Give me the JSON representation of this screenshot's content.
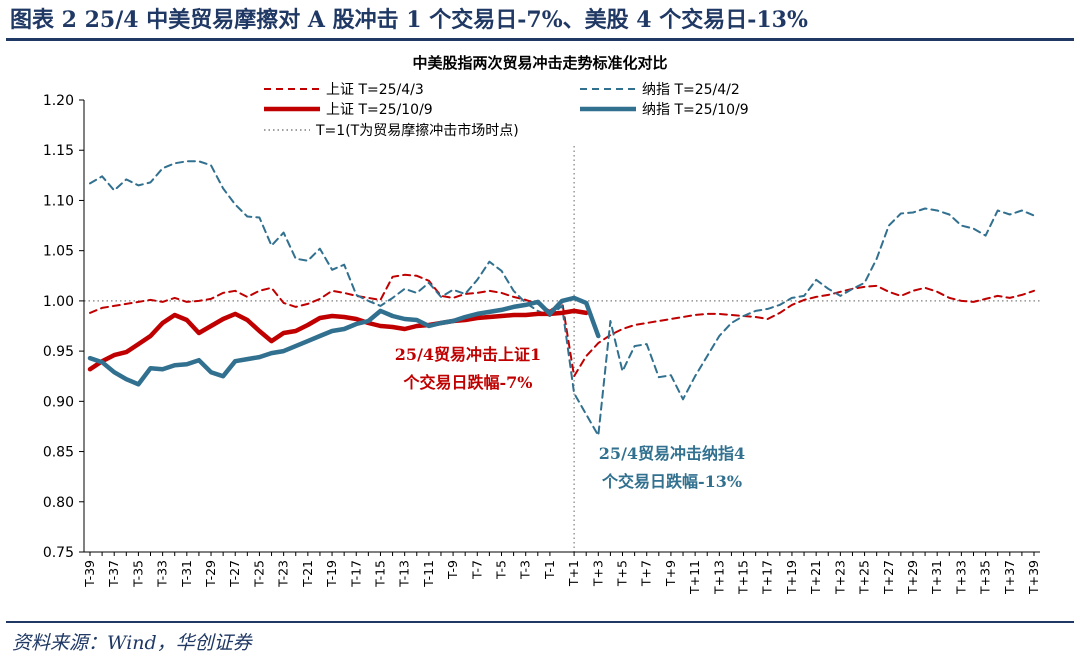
{
  "figure": {
    "title": "图表 2   25/4 中美贸易摩擦对 A 股冲击 1 个交易日-7%、美股 4 个交易日-13%",
    "source": "资料来源：Wind，华创证券"
  },
  "colors": {
    "red": "#c00000",
    "blue": "#31708f",
    "dark_blue": "#1f3864",
    "ref_line": "#7f7f7f"
  },
  "chart_data": {
    "type": "line",
    "title": "中美股指两次贸易冲击走势标准化对比",
    "xlabel": "",
    "ylabel": "",
    "ylim": [
      0.75,
      1.2
    ],
    "yticks": [
      0.75,
      0.8,
      0.85,
      0.9,
      0.95,
      1.0,
      1.05,
      1.1,
      1.15,
      1.2
    ],
    "ytick_labels": [
      "0.75",
      "0.80",
      "0.85",
      "0.90",
      "0.95",
      "1.00",
      "1.05",
      "1.10",
      "1.15",
      "1.20"
    ],
    "x_start": -39,
    "x_end": 39,
    "xtick_labels": [
      "T-39",
      "T-37",
      "T-35",
      "T-33",
      "T-31",
      "T-29",
      "T-27",
      "T-25",
      "T-23",
      "T-21",
      "T-19",
      "T-17",
      "T-15",
      "T-13",
      "T-11",
      "T-9",
      "T-7",
      "T-5",
      "T-3",
      "T-1",
      "T+1",
      "T+3",
      "T+5",
      "T+7",
      "T+9",
      "T+11",
      "T+13",
      "T+15",
      "T+17",
      "T+19",
      "T+21",
      "T+23",
      "T+25",
      "T+27",
      "T+29",
      "T+31",
      "T+33",
      "T+35",
      "T+37",
      "T+39"
    ],
    "legend_position": "top",
    "series": [
      {
        "name": "上证 T=25/4/3",
        "style": "dashed",
        "color": "#c00000",
        "width": 2,
        "x_from": -39,
        "values": [
          0.988,
          0.993,
          0.995,
          0.997,
          0.999,
          1.001,
          0.999,
          1.003,
          0.999,
          1.0,
          1.002,
          1.008,
          1.01,
          1.004,
          1.01,
          1.013,
          0.998,
          0.994,
          0.997,
          1.002,
          1.01,
          1.008,
          1.005,
          1.003,
          1.001,
          1.024,
          1.026,
          1.025,
          1.02,
          1.005,
          1.003,
          1.007,
          1.008,
          1.01,
          1.008,
          1.004,
          1.001,
          0.997,
          0.99,
          1.0,
          0.925,
          0.945,
          0.958,
          0.966,
          0.972,
          0.976,
          0.978,
          0.98,
          0.982,
          0.984,
          0.986,
          0.987,
          0.987,
          0.986,
          0.985,
          0.984,
          0.982,
          0.988,
          0.996,
          1.001,
          1.004,
          1.006,
          1.009,
          1.012,
          1.014,
          1.015,
          1.009,
          1.005,
          1.01,
          1.013,
          1.009,
          1.003,
          1.0,
          0.999,
          1.002,
          1.005,
          1.003,
          1.006,
          1.01
        ]
      },
      {
        "name": "纳指 T=25/4/2",
        "style": "dashed",
        "color": "#31708f",
        "width": 2,
        "x_from": -39,
        "values": [
          1.117,
          1.124,
          1.11,
          1.121,
          1.115,
          1.118,
          1.132,
          1.137,
          1.139,
          1.139,
          1.135,
          1.112,
          1.096,
          1.084,
          1.083,
          1.055,
          1.068,
          1.042,
          1.04,
          1.052,
          1.031,
          1.036,
          1.006,
          1.0,
          0.995,
          1.003,
          1.012,
          1.008,
          1.018,
          1.004,
          1.011,
          1.007,
          1.021,
          1.039,
          1.03,
          1.01,
          0.998,
          0.99,
          0.985,
          0.995,
          0.908,
          0.887,
          0.866,
          0.98,
          0.93,
          0.955,
          0.957,
          0.924,
          0.926,
          0.902,
          0.925,
          0.945,
          0.965,
          0.978,
          0.985,
          0.99,
          0.992,
          0.996,
          1.003,
          1.005,
          1.021,
          1.012,
          1.005,
          1.012,
          1.018,
          1.042,
          1.075,
          1.087,
          1.088,
          1.092,
          1.09,
          1.086,
          1.075,
          1.072,
          1.065,
          1.09,
          1.086,
          1.09,
          1.085
        ]
      },
      {
        "name": "上证 T=25/10/9",
        "style": "solid",
        "color": "#c00000",
        "width": 4.5,
        "x_from": -39,
        "values": [
          0.932,
          0.94,
          0.946,
          0.949,
          0.957,
          0.965,
          0.978,
          0.986,
          0.981,
          0.968,
          0.975,
          0.982,
          0.987,
          0.981,
          0.97,
          0.96,
          0.968,
          0.97,
          0.976,
          0.983,
          0.985,
          0.984,
          0.982,
          0.978,
          0.975,
          0.974,
          0.972,
          0.975,
          0.976,
          0.978,
          0.98,
          0.981,
          0.983,
          0.984,
          0.985,
          0.986,
          0.986,
          0.987,
          0.987,
          0.988,
          0.99,
          0.988
        ]
      },
      {
        "name": "纳指 T=25/10/9",
        "style": "solid",
        "color": "#31708f",
        "width": 4.5,
        "x_from": -39,
        "values": [
          0.943,
          0.939,
          0.929,
          0.922,
          0.917,
          0.933,
          0.932,
          0.936,
          0.937,
          0.941,
          0.929,
          0.925,
          0.94,
          0.942,
          0.944,
          0.948,
          0.95,
          0.955,
          0.96,
          0.965,
          0.97,
          0.972,
          0.977,
          0.98,
          0.99,
          0.985,
          0.982,
          0.981,
          0.975,
          0.978,
          0.98,
          0.984,
          0.987,
          0.989,
          0.991,
          0.994,
          0.996,
          0.999,
          0.987,
          1.0,
          1.003,
          0.998,
          0.965
        ]
      },
      {
        "name": "T=1(T为贸易摩擦冲击市场时点)",
        "style": "dotted",
        "color": "#7f7f7f",
        "width": 1.2,
        "x_vertical": 1
      }
    ],
    "reference_line": {
      "y": 1.0,
      "style": "dotted"
    },
    "annotations": [
      {
        "lines": [
          "25/4贸易冲击上证1",
          "个交易日跌幅-7%"
        ],
        "color": "#c00000"
      },
      {
        "lines": [
          "25/4贸易冲击纳指4",
          "个交易日跌幅-13%"
        ],
        "color": "#31708f"
      }
    ]
  }
}
